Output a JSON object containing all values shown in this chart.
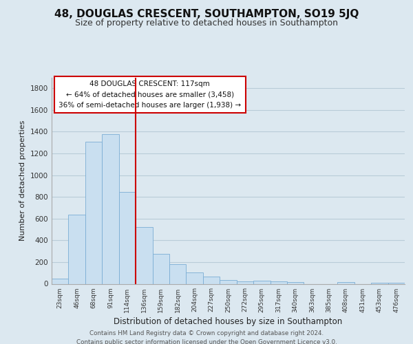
{
  "title": "48, DOUGLAS CRESCENT, SOUTHAMPTON, SO19 5JQ",
  "subtitle": "Size of property relative to detached houses in Southampton",
  "xlabel": "Distribution of detached houses by size in Southampton",
  "ylabel": "Number of detached properties",
  "bar_labels": [
    "23sqm",
    "46sqm",
    "68sqm",
    "91sqm",
    "114sqm",
    "136sqm",
    "159sqm",
    "182sqm",
    "204sqm",
    "227sqm",
    "250sqm",
    "272sqm",
    "295sqm",
    "317sqm",
    "340sqm",
    "363sqm",
    "385sqm",
    "408sqm",
    "431sqm",
    "453sqm",
    "476sqm"
  ],
  "bar_values": [
    50,
    635,
    1305,
    1375,
    848,
    525,
    278,
    182,
    105,
    65,
    32,
    25,
    30,
    20,
    15,
    0,
    0,
    15,
    0,
    10,
    10
  ],
  "bar_color": "#c9dff0",
  "bar_edge_color": "#7aadd4",
  "vline_color": "#cc0000",
  "ylim": [
    0,
    1900
  ],
  "yticks": [
    0,
    200,
    400,
    600,
    800,
    1000,
    1200,
    1400,
    1600,
    1800
  ],
  "property_label": "48 DOUGLAS CRESCENT: 117sqm",
  "smaller_pct": 64,
  "smaller_count": "3,458",
  "larger_pct": 36,
  "larger_count": "1,938",
  "footer_line1": "Contains HM Land Registry data © Crown copyright and database right 2024.",
  "footer_line2": "Contains public sector information licensed under the Open Government Licence v3.0.",
  "bg_color": "#dce8f0",
  "plot_bg_color": "#dce8f0",
  "grid_color": "#b8ccd8",
  "title_fontsize": 11,
  "subtitle_fontsize": 9
}
